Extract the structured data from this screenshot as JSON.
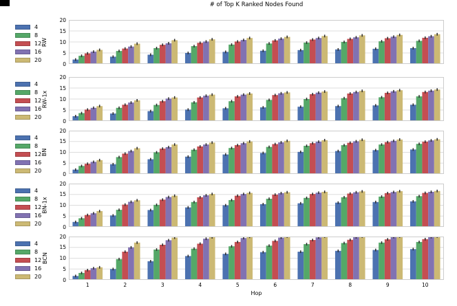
{
  "chart_data": {
    "type": "bar",
    "title": "# of Top K Ranked Nodes Found",
    "xlabel": "Hop",
    "categories": [
      "1",
      "2",
      "3",
      "4",
      "5",
      "6",
      "7",
      "8",
      "9",
      "10"
    ],
    "legend_labels": [
      "4",
      "8",
      "12",
      "16",
      "20"
    ],
    "palette": [
      "#4C72B0",
      "#55A868",
      "#C44E52",
      "#8172B2",
      "#CCB974"
    ],
    "grid_color": "#DDDDDD",
    "spine_color": "#CCCCCC",
    "error_bar_color": "#2B2B2B",
    "ylim": [
      0,
      20
    ],
    "yticks": [
      0,
      5,
      10,
      15,
      20
    ],
    "error_bar": 0.6,
    "grid": true,
    "legend_position": "left-outside",
    "subplots": [
      {
        "ylabel": "RW",
        "series": [
          {
            "name": "4",
            "values": [
              2.0,
              3.3,
              4.2,
              5.0,
              5.5,
              6.0,
              6.3,
              6.6,
              6.9,
              7.2
            ]
          },
          {
            "name": "8",
            "values": [
              3.7,
              5.9,
              7.2,
              8.1,
              8.8,
              9.3,
              9.7,
              10.0,
              10.3,
              10.5
            ]
          },
          {
            "name": "12",
            "values": [
              4.8,
              7.0,
              8.7,
              9.6,
              10.2,
              10.7,
              11.1,
              11.4,
              11.7,
              11.9
            ]
          },
          {
            "name": "16",
            "values": [
              5.6,
              7.9,
              9.4,
              10.2,
              10.9,
              11.5,
              11.8,
              12.1,
              12.4,
              12.6
            ]
          },
          {
            "name": "20",
            "values": [
              6.4,
              9.2,
              10.8,
              11.2,
              11.8,
              12.3,
              12.7,
              13.0,
              13.2,
              13.5
            ]
          }
        ]
      },
      {
        "ylabel": "RW-1x",
        "series": [
          {
            "name": "4",
            "values": [
              2.2,
              3.4,
              4.5,
              5.2,
              5.8,
              6.2,
              6.5,
              6.8,
              7.1,
              7.4
            ]
          },
          {
            "name": "8",
            "values": [
              3.6,
              6.0,
              7.3,
              8.5,
              9.0,
              9.6,
              10.0,
              10.4,
              10.8,
              11.2
            ]
          },
          {
            "name": "12",
            "values": [
              5.2,
              7.4,
              9.0,
              10.7,
              11.2,
              11.8,
              12.2,
              12.5,
              12.8,
              13.2
            ]
          },
          {
            "name": "16",
            "values": [
              6.0,
              8.4,
              10.2,
              11.5,
              12.0,
              12.6,
              12.9,
              13.2,
              13.5,
              13.8
            ]
          },
          {
            "name": "20",
            "values": [
              6.8,
              9.4,
              10.7,
              12.0,
              12.5,
              13.0,
              13.4,
              13.7,
              14.0,
              14.3
            ]
          }
        ]
      },
      {
        "ylabel": "BN",
        "series": [
          {
            "name": "4",
            "values": [
              2.0,
              4.5,
              6.8,
              8.0,
              9.0,
              9.7,
              10.2,
              10.6,
              11.0,
              11.3
            ]
          },
          {
            "name": "8",
            "values": [
              3.7,
              7.8,
              10.0,
              11.2,
              12.0,
              12.5,
              13.0,
              13.3,
              13.6,
              13.9
            ]
          },
          {
            "name": "12",
            "values": [
              4.7,
              9.4,
              11.7,
              12.7,
              13.3,
              13.8,
              14.2,
              14.4,
              14.7,
              14.9
            ]
          },
          {
            "name": "16",
            "values": [
              5.6,
              10.6,
              12.4,
              13.6,
              14.2,
              14.6,
              14.9,
              15.1,
              15.3,
              15.5
            ]
          },
          {
            "name": "20",
            "values": [
              6.4,
              11.9,
              13.6,
              14.5,
              15.0,
              15.3,
              15.6,
              15.8,
              15.9,
              16.0
            ]
          }
        ]
      },
      {
        "ylabel": "BN-1x",
        "series": [
          {
            "name": "4",
            "values": [
              2.3,
              5.3,
              7.8,
              9.0,
              10.0,
              10.5,
              10.9,
              11.2,
              11.5,
              11.8
            ]
          },
          {
            "name": "8",
            "values": [
              4.0,
              7.9,
              10.2,
              11.5,
              12.4,
              13.0,
              13.4,
              13.7,
              14.0,
              14.2
            ]
          },
          {
            "name": "12",
            "values": [
              5.5,
              10.3,
              12.6,
              13.7,
              14.4,
              14.9,
              15.2,
              15.4,
              15.6,
              15.7
            ]
          },
          {
            "name": "16",
            "values": [
              6.3,
              11.6,
              13.8,
              14.6,
              15.2,
              15.6,
              15.8,
              16.0,
              16.1,
              16.2
            ]
          },
          {
            "name": "20",
            "values": [
              7.3,
              12.3,
              14.4,
              15.2,
              15.7,
              16.0,
              16.2,
              16.4,
              16.5,
              16.6
            ]
          }
        ]
      },
      {
        "ylabel": "BCN",
        "series": [
          {
            "name": "4",
            "values": [
              1.8,
              5.0,
              8.6,
              11.0,
              12.0,
              12.8,
              13.0,
              13.4,
              13.8,
              14.2
            ]
          },
          {
            "name": "8",
            "values": [
              3.2,
              9.6,
              14.0,
              14.4,
              15.5,
              15.8,
              16.5,
              17.0,
              17.2,
              17.5
            ]
          },
          {
            "name": "12",
            "values": [
              4.5,
              13.0,
              16.2,
              16.7,
              17.5,
              18.0,
              18.4,
              18.5,
              18.7,
              18.8
            ]
          },
          {
            "name": "16",
            "values": [
              5.4,
              15.0,
              18.3,
              19.0,
              19.3,
              19.5,
              19.6,
              19.7,
              19.8,
              19.8
            ]
          },
          {
            "name": "20",
            "values": [
              5.8,
              17.2,
              19.5,
              19.7,
              19.9,
              20.0,
              20.0,
              20.0,
              20.0,
              20.0
            ]
          }
        ]
      }
    ]
  }
}
